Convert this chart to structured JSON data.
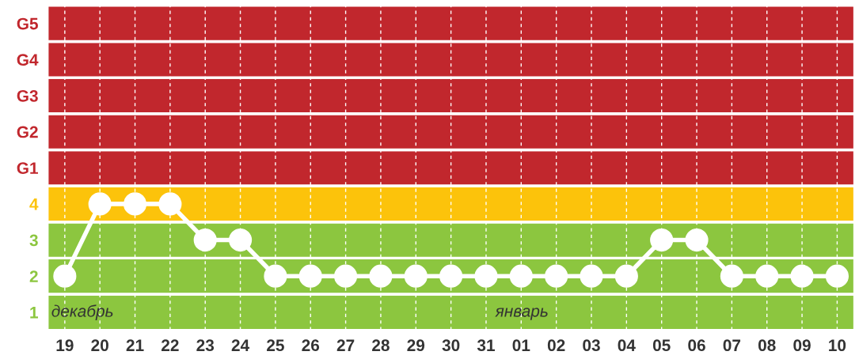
{
  "chart_data": {
    "type": "line",
    "categories": [
      "19",
      "20",
      "21",
      "22",
      "23",
      "24",
      "25",
      "26",
      "27",
      "28",
      "29",
      "30",
      "31",
      "01",
      "02",
      "03",
      "04",
      "05",
      "06",
      "07",
      "08",
      "09",
      "10"
    ],
    "series": [
      {
        "color": "#ffffff",
        "values": [
          2,
          4,
          4,
          4,
          3,
          3,
          2,
          2,
          2,
          2,
          2,
          2,
          2,
          2,
          2,
          2,
          2,
          3,
          3,
          2,
          2,
          2,
          2
        ]
      }
    ],
    "ylim": [
      0.5,
      9.5
    ],
    "yticks": [
      1,
      2,
      3,
      {
        "value": 4,
        "label": "4"
      },
      {
        "value": 5,
        "label": "G1"
      },
      {
        "value": 6,
        "label": "G2"
      },
      {
        "value": 7,
        "label": "G3"
      },
      {
        "value": 8,
        "label": "G4"
      },
      {
        "value": 9,
        "label": "G5"
      }
    ],
    "bands": [
      {
        "axis": "y",
        "from": 0.5,
        "to": 1.5,
        "color": "#8cc63f"
      },
      {
        "axis": "y",
        "from": 1.5,
        "to": 2.5,
        "color": "#8cc63f"
      },
      {
        "axis": "y",
        "from": 2.5,
        "to": 3.5,
        "color": "#8cc63f"
      },
      {
        "axis": "y",
        "from": 3.5,
        "to": 4.5,
        "color": "#fcc30b"
      },
      {
        "axis": "y",
        "from": 4.5,
        "to": 5.5,
        "color": "#c1272d"
      },
      {
        "axis": "y",
        "from": 5.5,
        "to": 6.5,
        "color": "#c1272d"
      },
      {
        "axis": "y",
        "from": 6.5,
        "to": 7.5,
        "color": "#c1272d"
      },
      {
        "axis": "y",
        "from": 7.5,
        "to": 8.5,
        "color": "#c1272d"
      },
      {
        "axis": "y",
        "from": 8.5,
        "to": 9.5,
        "color": "#c1272d"
      }
    ],
    "annotations": [
      "декабрь",
      "январь"
    ],
    "grid": "x",
    "marker": "circle",
    "line_style": "solid"
  }
}
